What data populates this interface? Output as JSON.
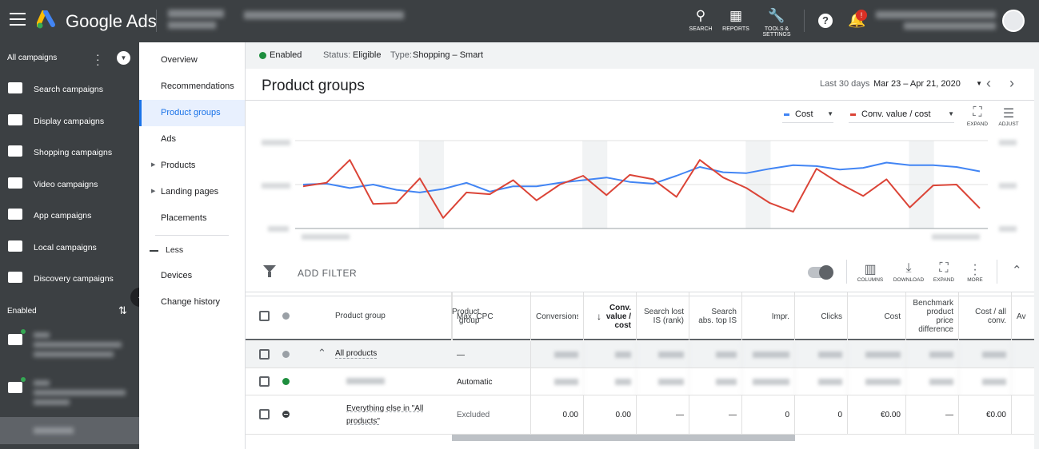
{
  "app": {
    "name": "Google Ads"
  },
  "topbar": {
    "account": "",
    "account_sub": "",
    "campaign": "",
    "user": "",
    "user_sub": "",
    "search_label": "SEARCH",
    "reports_label": "REPORTS",
    "tools_label": "TOOLS & SETTINGS",
    "notif_badge": "!"
  },
  "nav": {
    "header": "All campaigns",
    "items": [
      {
        "label": "Search campaigns"
      },
      {
        "label": "Display campaigns"
      },
      {
        "label": "Shopping campaigns"
      },
      {
        "label": "Video campaigns"
      },
      {
        "label": "App campaigns"
      },
      {
        "label": "Local campaigns"
      },
      {
        "label": "Discovery campaigns"
      }
    ],
    "enabled_label": "Enabled",
    "campaigns": [
      {
        "line1": "",
        "line2": "",
        "line3": ""
      },
      {
        "line1": "",
        "line2": "",
        "line3": ""
      }
    ],
    "selected_group": ""
  },
  "subnav": {
    "items": [
      "Overview",
      "Recommendations",
      "Product groups",
      "Ads",
      "Products",
      "Landing pages",
      "Placements"
    ],
    "less": "Less",
    "more_items": [
      "Devices",
      "Change history"
    ]
  },
  "status": {
    "enabled": "Enabled",
    "status_label": "Status:",
    "status_value": "Eligible",
    "type_label": "Type:",
    "type_value": "Shopping – Smart"
  },
  "page": {
    "title": "Product groups",
    "date_label": "Last 30 days",
    "date_range": "Mar 23 – Apr 21, 2020"
  },
  "chart_controls": {
    "metric1": "Cost",
    "metric2": "Conv. value / cost",
    "expand": "EXPAND",
    "adjust": "ADJUST"
  },
  "chart_data": {
    "type": "line",
    "y_left_ticks": [],
    "y_right_ticks": [],
    "x_labels": [],
    "series": [
      {
        "name": "Cost",
        "color": "#4285f4",
        "values": [
          0.5,
          0.51,
          0.46,
          0.5,
          0.44,
          0.41,
          0.45,
          0.52,
          0.42,
          0.48,
          0.48,
          0.52,
          0.55,
          0.58,
          0.53,
          0.51,
          0.6,
          0.7,
          0.64,
          0.63,
          0.68,
          0.72,
          0.71,
          0.67,
          0.69,
          0.75,
          0.72,
          0.72,
          0.7,
          0.65
        ]
      },
      {
        "name": "Conv. value / cost",
        "color": "#db4437",
        "values": [
          0.48,
          0.52,
          0.78,
          0.28,
          0.29,
          0.57,
          0.12,
          0.41,
          0.39,
          0.55,
          0.32,
          0.5,
          0.6,
          0.38,
          0.61,
          0.56,
          0.36,
          0.78,
          0.58,
          0.46,
          0.29,
          0.19,
          0.68,
          0.51,
          0.37,
          0.56,
          0.24,
          0.49,
          0.5,
          0.23
        ]
      }
    ]
  },
  "filter": {
    "add_filter": "ADD FILTER",
    "columns": "COLUMNS",
    "download": "DOWNLOAD",
    "expand": "EXPAND",
    "more": "MORE"
  },
  "table": {
    "headers": [
      "Product group",
      "Max. CPC",
      "Conversions",
      "Conv. value / cost",
      "Search lost IS (rank)",
      "Search abs. top IS",
      "Impr.",
      "Clicks",
      "Cost",
      "Benchmark product price difference",
      "Cost / all conv.",
      "Av"
    ],
    "rows": [
      {
        "group": "All products",
        "cpc": "—",
        "conv": "",
        "cvc": "",
        "slis": "",
        "sabs": "",
        "impr": "",
        "clicks": "",
        "cost": "",
        "bench": "",
        "cpa": ""
      },
      {
        "group": "",
        "cpc": "Automatic",
        "conv": "",
        "cvc": "",
        "slis": "",
        "sabs": "",
        "impr": "",
        "clicks": "",
        "cost": "",
        "bench": "",
        "cpa": ""
      },
      {
        "group": "Everything else in \"All products\"",
        "cpc": "Excluded",
        "conv": "0.00",
        "cvc": "0.00",
        "slis": "—",
        "sabs": "—",
        "impr": "0",
        "clicks": "0",
        "cost": "€0.00",
        "bench": "—",
        "cpa": "€0.00"
      }
    ]
  }
}
